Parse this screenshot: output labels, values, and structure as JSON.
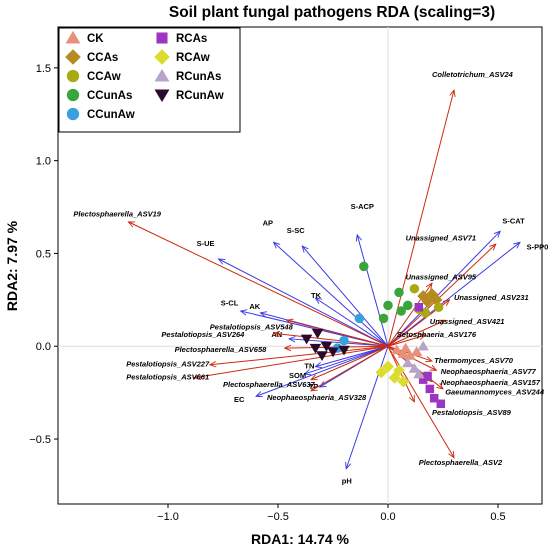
{
  "chart_data": {
    "type": "scatter",
    "title": "Soil plant fungal pathogens RDA (scaling=3)",
    "xlabel": "RDA1: 14.74 %",
    "ylabel": "RDA2: 7.97 %",
    "xlim": [
      -1.5,
      0.7
    ],
    "ylim": [
      -0.85,
      1.72
    ],
    "xticks": [
      -1.0,
      -0.5,
      0.0,
      0.5
    ],
    "yticks": [
      -0.5,
      0.0,
      0.5,
      1.0,
      1.5
    ],
    "xtick_labels": [
      "−1.0",
      "−0.5",
      "0.0",
      "0.5"
    ],
    "ytick_labels": [
      "−0.5",
      "0.0",
      "0.5",
      "1.0",
      "1.5"
    ],
    "zero_lines": true,
    "legend": {
      "placement": "top-left",
      "entries": [
        {
          "name": "CK",
          "shape": "triangle-up",
          "color": "#E8907A"
        },
        {
          "name": "CCAs",
          "shape": "diamond",
          "color": "#B58A1F"
        },
        {
          "name": "CCAw",
          "shape": "circle",
          "color": "#A9A912"
        },
        {
          "name": "CCunAs",
          "shape": "circle",
          "color": "#3AA53A"
        },
        {
          "name": "CCunAw",
          "shape": "circle",
          "color": "#39A0DE"
        },
        {
          "name": "RCAs",
          "shape": "square",
          "color": "#9B35C2"
        },
        {
          "name": "RCAw",
          "shape": "diamond",
          "color": "#DCDC2E"
        },
        {
          "name": "RCunAs",
          "shape": "triangle-up",
          "color": "#B8A4C9"
        },
        {
          "name": "RCunAw",
          "shape": "triangle-down",
          "color": "#2A0A2A"
        }
      ]
    },
    "env_vectors": {
      "color": "#3A3AE6",
      "items": [
        {
          "label": "S-ACP",
          "x": -0.14,
          "y": 0.6,
          "lx": -0.17,
          "ly": 0.74
        },
        {
          "label": "AP",
          "x": -0.52,
          "y": 0.56,
          "lx": -0.57,
          "ly": 0.65
        },
        {
          "label": "S-SC",
          "x": -0.39,
          "y": 0.54,
          "lx": -0.46,
          "ly": 0.61
        },
        {
          "label": "S-UE",
          "x": -0.77,
          "y": 0.47,
          "lx": -0.87,
          "ly": 0.54
        },
        {
          "label": "S-CAT",
          "x": 0.51,
          "y": 0.62,
          "lx": 0.52,
          "ly": 0.66
        },
        {
          "label": "S-PP0",
          "x": 0.6,
          "y": 0.56,
          "lx": 0.63,
          "ly": 0.52
        },
        {
          "label": "TK",
          "x": -0.33,
          "y": 0.26,
          "lx": -0.35,
          "ly": 0.26
        },
        {
          "label": "S-CL",
          "x": -0.67,
          "y": 0.19,
          "lx": -0.76,
          "ly": 0.22
        },
        {
          "label": "AK",
          "x": -0.58,
          "y": 0.18,
          "lx": -0.63,
          "ly": 0.2
        },
        {
          "label": "AN",
          "x": -0.45,
          "y": 0.04,
          "lx": -0.53,
          "ly": 0.05
        },
        {
          "label": "TN",
          "x": -0.33,
          "y": -0.11,
          "lx": -0.38,
          "ly": -0.12
        },
        {
          "label": "SOM",
          "x": -0.38,
          "y": -0.15,
          "lx": -0.45,
          "ly": -0.17
        },
        {
          "label": "TP",
          "x": -0.31,
          "y": -0.22,
          "lx": -0.36,
          "ly": -0.23
        },
        {
          "label": "EC",
          "x": -0.6,
          "y": -0.27,
          "lx": -0.7,
          "ly": -0.3
        },
        {
          "label": "pH",
          "x": -0.19,
          "y": -0.66,
          "lx": -0.21,
          "ly": -0.74
        }
      ]
    },
    "species_vectors": {
      "color": "#CC2B10",
      "items": [
        {
          "label": "Colletotrichum_ASV24",
          "x": 0.3,
          "y": 1.38,
          "lx": 0.2,
          "ly": 1.45
        },
        {
          "label": "Plectosphaerella_ASV19",
          "x": -1.18,
          "y": 0.67,
          "lx": -1.43,
          "ly": 0.7
        },
        {
          "label": "Unassigned_ASV71",
          "x": 0.49,
          "y": 0.55,
          "lx": 0.08,
          "ly": 0.57
        },
        {
          "label": "Unassigned_ASV95",
          "x": 0.2,
          "y": 0.34,
          "lx": 0.08,
          "ly": 0.36
        },
        {
          "label": "Unassigned_ASV231",
          "x": 0.28,
          "y": 0.25,
          "lx": 0.3,
          "ly": 0.25
        },
        {
          "label": "Unassigned_ASV421",
          "x": 0.26,
          "y": 0.14,
          "lx": 0.19,
          "ly": 0.12
        },
        {
          "label": "Setosphaeria_ASV176",
          "x": 0.17,
          "y": 0.06,
          "lx": 0.04,
          "ly": 0.05
        },
        {
          "label": "Pestalotiopsis_ASV548",
          "x": -0.46,
          "y": 0.14,
          "lx": -0.81,
          "ly": 0.09
        },
        {
          "label": "Pestalotiopsis_ASV264",
          "x": -0.52,
          "y": 0.07,
          "lx": -1.03,
          "ly": 0.05
        },
        {
          "label": "Plectosphaerella_ASV658",
          "x": -0.47,
          "y": -0.01,
          "lx": -0.97,
          "ly": -0.03
        },
        {
          "label": "Pestalotiopsis_ASV227",
          "x": -0.81,
          "y": -0.1,
          "lx": -1.19,
          "ly": -0.11
        },
        {
          "label": "Pestalotiopsis_ASV661",
          "x": -0.88,
          "y": -0.17,
          "lx": -1.19,
          "ly": -0.18
        },
        {
          "label": "Plectosphaerella_ASV637",
          "x": -0.35,
          "y": -0.18,
          "lx": -0.75,
          "ly": -0.22
        },
        {
          "label": "Neophaeosphaeria_ASV328",
          "x": -0.35,
          "y": -0.24,
          "lx": -0.55,
          "ly": -0.29
        },
        {
          "label": "Thermomyces_ASV70",
          "x": 0.2,
          "y": -0.08,
          "lx": 0.21,
          "ly": -0.09
        },
        {
          "label": "Neophaeosphaeria_ASV77",
          "x": 0.22,
          "y": -0.13,
          "lx": 0.24,
          "ly": -0.15
        },
        {
          "label": "Neophaeosphaeria_ASV157",
          "x": 0.2,
          "y": -0.19,
          "lx": 0.24,
          "ly": -0.21
        },
        {
          "label": "Gaeumannomyces_ASV244",
          "x": 0.25,
          "y": -0.23,
          "lx": 0.26,
          "ly": -0.26
        },
        {
          "label": "Pestalotiopsis_ASV89",
          "x": 0.12,
          "y": -0.3,
          "lx": 0.2,
          "ly": -0.37
        },
        {
          "label": "Plectosphaerella_ASV2",
          "x": 0.3,
          "y": -0.6,
          "lx": 0.14,
          "ly": -0.64
        }
      ]
    },
    "sample_points": [
      {
        "group": "CK",
        "x": 0.04,
        "y": -0.02
      },
      {
        "group": "CK",
        "x": 0.07,
        "y": -0.04
      },
      {
        "group": "CK",
        "x": 0.08,
        "y": -0.01
      },
      {
        "group": "CK",
        "x": 0.1,
        "y": -0.05
      },
      {
        "group": "CK",
        "x": 0.13,
        "y": -0.03
      },
      {
        "group": "CCAs",
        "x": 0.16,
        "y": 0.27
      },
      {
        "group": "CCAs",
        "x": 0.18,
        "y": 0.24
      },
      {
        "group": "CCAs",
        "x": 0.2,
        "y": 0.28
      },
      {
        "group": "CCAs",
        "x": 0.22,
        "y": 0.25
      },
      {
        "group": "CCAw",
        "x": 0.12,
        "y": 0.31
      },
      {
        "group": "CCAw",
        "x": 0.17,
        "y": 0.18
      },
      {
        "group": "CCAw",
        "x": 0.23,
        "y": 0.21
      },
      {
        "group": "CCAw",
        "x": 0.14,
        "y": 0.2
      },
      {
        "group": "CCunAs",
        "x": -0.11,
        "y": 0.43
      },
      {
        "group": "CCunAs",
        "x": 0.0,
        "y": 0.22
      },
      {
        "group": "CCunAs",
        "x": 0.05,
        "y": 0.29
      },
      {
        "group": "CCunAs",
        "x": 0.09,
        "y": 0.22
      },
      {
        "group": "CCunAs",
        "x": -0.02,
        "y": 0.15
      },
      {
        "group": "CCunAs",
        "x": 0.06,
        "y": 0.19
      },
      {
        "group": "CCunAw",
        "x": -0.13,
        "y": 0.15
      },
      {
        "group": "CCunAw",
        "x": -0.2,
        "y": 0.03
      },
      {
        "group": "CCunAw",
        "x": -0.23,
        "y": -0.01
      },
      {
        "group": "RCAs",
        "x": 0.14,
        "y": 0.21
      },
      {
        "group": "RCAs",
        "x": 0.16,
        "y": -0.18
      },
      {
        "group": "RCAs",
        "x": 0.19,
        "y": -0.23
      },
      {
        "group": "RCAs",
        "x": 0.21,
        "y": -0.28
      },
      {
        "group": "RCAs",
        "x": 0.18,
        "y": -0.16
      },
      {
        "group": "RCAs",
        "x": 0.24,
        "y": -0.31
      },
      {
        "group": "RCAw",
        "x": -0.03,
        "y": -0.14
      },
      {
        "group": "RCAw",
        "x": 0.0,
        "y": -0.11
      },
      {
        "group": "RCAw",
        "x": 0.03,
        "y": -0.17
      },
      {
        "group": "RCAw",
        "x": 0.07,
        "y": -0.19
      },
      {
        "group": "RCAw",
        "x": 0.05,
        "y": -0.13
      },
      {
        "group": "RCunAs",
        "x": 0.16,
        "y": 0.0
      },
      {
        "group": "RCunAs",
        "x": 0.09,
        "y": -0.09
      },
      {
        "group": "RCunAs",
        "x": 0.12,
        "y": -0.12
      },
      {
        "group": "RCunAs",
        "x": 0.14,
        "y": -0.15
      },
      {
        "group": "RCunAw",
        "x": -0.32,
        "y": 0.07
      },
      {
        "group": "RCunAw",
        "x": -0.37,
        "y": 0.04
      },
      {
        "group": "RCunAw",
        "x": -0.28,
        "y": 0.0
      },
      {
        "group": "RCunAw",
        "x": -0.33,
        "y": -0.01
      },
      {
        "group": "RCunAw",
        "x": -0.25,
        "y": -0.03
      },
      {
        "group": "RCunAw",
        "x": -0.3,
        "y": -0.05
      },
      {
        "group": "RCunAw",
        "x": -0.2,
        "y": -0.02
      }
    ]
  }
}
